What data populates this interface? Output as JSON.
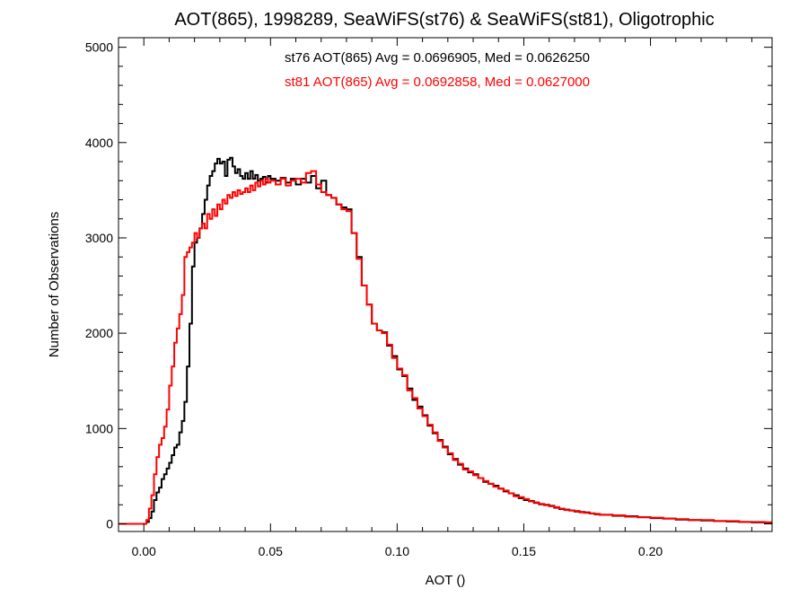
{
  "colors": {
    "st76": "#000000",
    "st81": "#ff0000",
    "axis": "#000000"
  },
  "chart_data": {
    "type": "line",
    "title": "AOT(865), 1998289, SeaWiFS(st76) & SeaWiFS(st81), Oligotrophic",
    "xlabel": "AOT ()",
    "ylabel": "Number of Observations",
    "xlim": [
      -0.01,
      0.248
    ],
    "ylim": [
      -80,
      5100
    ],
    "x_ticks": [
      0.0,
      0.05,
      0.1,
      0.15,
      0.2
    ],
    "x_tick_labels": [
      "0.00",
      "0.05",
      "0.10",
      "0.15",
      "0.20"
    ],
    "y_ticks": [
      0,
      1000,
      2000,
      3000,
      4000,
      5000
    ],
    "y_tick_labels": [
      "0",
      "1000",
      "2000",
      "3000",
      "4000",
      "5000"
    ],
    "annotations": [
      {
        "text": "st76 AOT(865) Avg = 0.0696905, Med = 0.0626250",
        "series": "st76"
      },
      {
        "text": "st81 AOT(865) Avg = 0.0692858, Med = 0.0627000",
        "series": "st81"
      }
    ],
    "series": [
      {
        "name": "st76",
        "points": [
          [
            -0.01,
            0
          ],
          [
            -0.005,
            0
          ],
          [
            -0.002,
            0
          ],
          [
            0.0,
            0
          ],
          [
            0.001,
            20
          ],
          [
            0.002,
            60
          ],
          [
            0.003,
            130
          ],
          [
            0.004,
            250
          ],
          [
            0.005,
            330
          ],
          [
            0.006,
            380
          ],
          [
            0.007,
            470
          ],
          [
            0.008,
            520
          ],
          [
            0.009,
            580
          ],
          [
            0.01,
            640
          ],
          [
            0.011,
            720
          ],
          [
            0.012,
            800
          ],
          [
            0.013,
            830
          ],
          [
            0.014,
            960
          ],
          [
            0.015,
            1080
          ],
          [
            0.016,
            1280
          ],
          [
            0.017,
            1650
          ],
          [
            0.018,
            2100
          ],
          [
            0.019,
            2700
          ],
          [
            0.02,
            2950
          ],
          [
            0.021,
            3000
          ],
          [
            0.022,
            3100
          ],
          [
            0.023,
            3250
          ],
          [
            0.024,
            3400
          ],
          [
            0.025,
            3550
          ],
          [
            0.026,
            3650
          ],
          [
            0.027,
            3700
          ],
          [
            0.028,
            3780
          ],
          [
            0.029,
            3830
          ],
          [
            0.03,
            3780
          ],
          [
            0.031,
            3800
          ],
          [
            0.032,
            3650
          ],
          [
            0.033,
            3820
          ],
          [
            0.034,
            3840
          ],
          [
            0.035,
            3750
          ],
          [
            0.036,
            3680
          ],
          [
            0.037,
            3720
          ],
          [
            0.038,
            3650
          ],
          [
            0.039,
            3620
          ],
          [
            0.04,
            3680
          ],
          [
            0.041,
            3620
          ],
          [
            0.042,
            3700
          ],
          [
            0.043,
            3620
          ],
          [
            0.044,
            3660
          ],
          [
            0.045,
            3600
          ],
          [
            0.046,
            3620
          ],
          [
            0.047,
            3640
          ],
          [
            0.048,
            3580
          ],
          [
            0.049,
            3650
          ],
          [
            0.05,
            3620
          ],
          [
            0.052,
            3600
          ],
          [
            0.054,
            3630
          ],
          [
            0.056,
            3580
          ],
          [
            0.058,
            3620
          ],
          [
            0.06,
            3560
          ],
          [
            0.062,
            3620
          ],
          [
            0.064,
            3580
          ],
          [
            0.066,
            3650
          ],
          [
            0.068,
            3520
          ],
          [
            0.07,
            3600
          ],
          [
            0.072,
            3450
          ],
          [
            0.074,
            3420
          ],
          [
            0.076,
            3350
          ],
          [
            0.078,
            3320
          ],
          [
            0.08,
            3300
          ],
          [
            0.082,
            3050
          ],
          [
            0.084,
            2800
          ],
          [
            0.086,
            2500
          ],
          [
            0.088,
            2300
          ],
          [
            0.09,
            2100
          ],
          [
            0.092,
            2030
          ],
          [
            0.094,
            2010
          ],
          [
            0.096,
            1870
          ],
          [
            0.098,
            1760
          ],
          [
            0.1,
            1620
          ],
          [
            0.102,
            1550
          ],
          [
            0.104,
            1420
          ],
          [
            0.106,
            1300
          ],
          [
            0.108,
            1230
          ],
          [
            0.11,
            1140
          ],
          [
            0.112,
            1030
          ],
          [
            0.114,
            950
          ],
          [
            0.116,
            880
          ],
          [
            0.118,
            810
          ],
          [
            0.12,
            730
          ],
          [
            0.122,
            680
          ],
          [
            0.124,
            620
          ],
          [
            0.126,
            580
          ],
          [
            0.128,
            540
          ],
          [
            0.13,
            520
          ],
          [
            0.132,
            480
          ],
          [
            0.134,
            440
          ],
          [
            0.136,
            420
          ],
          [
            0.138,
            400
          ],
          [
            0.14,
            370
          ],
          [
            0.142,
            340
          ],
          [
            0.144,
            320
          ],
          [
            0.146,
            300
          ],
          [
            0.148,
            270
          ],
          [
            0.15,
            250
          ],
          [
            0.152,
            240
          ],
          [
            0.154,
            220
          ],
          [
            0.156,
            205
          ],
          [
            0.158,
            200
          ],
          [
            0.16,
            190
          ],
          [
            0.162,
            170
          ],
          [
            0.164,
            155
          ],
          [
            0.166,
            150
          ],
          [
            0.168,
            140
          ],
          [
            0.17,
            130
          ],
          [
            0.172,
            125
          ],
          [
            0.174,
            120
          ],
          [
            0.176,
            110
          ],
          [
            0.178,
            100
          ],
          [
            0.18,
            95
          ],
          [
            0.185,
            85
          ],
          [
            0.19,
            80
          ],
          [
            0.195,
            70
          ],
          [
            0.2,
            60
          ],
          [
            0.205,
            55
          ],
          [
            0.21,
            45
          ],
          [
            0.215,
            40
          ],
          [
            0.22,
            35
          ],
          [
            0.225,
            30
          ],
          [
            0.23,
            25
          ],
          [
            0.235,
            20
          ],
          [
            0.24,
            15
          ],
          [
            0.245,
            15
          ]
        ]
      },
      {
        "name": "st81",
        "points": [
          [
            -0.01,
            0
          ],
          [
            -0.005,
            0
          ],
          [
            -0.002,
            0
          ],
          [
            0.0,
            0
          ],
          [
            0.001,
            40
          ],
          [
            0.002,
            160
          ],
          [
            0.003,
            300
          ],
          [
            0.004,
            520
          ],
          [
            0.005,
            700
          ],
          [
            0.006,
            830
          ],
          [
            0.007,
            900
          ],
          [
            0.008,
            1020
          ],
          [
            0.009,
            1200
          ],
          [
            0.01,
            1450
          ],
          [
            0.011,
            1650
          ],
          [
            0.012,
            1900
          ],
          [
            0.013,
            2050
          ],
          [
            0.014,
            2200
          ],
          [
            0.015,
            2400
          ],
          [
            0.016,
            2800
          ],
          [
            0.017,
            2850
          ],
          [
            0.018,
            2900
          ],
          [
            0.019,
            2950
          ],
          [
            0.02,
            3050
          ],
          [
            0.021,
            3000
          ],
          [
            0.022,
            3100
          ],
          [
            0.023,
            3150
          ],
          [
            0.024,
            3100
          ],
          [
            0.025,
            3250
          ],
          [
            0.026,
            3200
          ],
          [
            0.027,
            3300
          ],
          [
            0.028,
            3230
          ],
          [
            0.029,
            3350
          ],
          [
            0.03,
            3300
          ],
          [
            0.031,
            3400
          ],
          [
            0.032,
            3360
          ],
          [
            0.033,
            3450
          ],
          [
            0.034,
            3420
          ],
          [
            0.035,
            3480
          ],
          [
            0.036,
            3440
          ],
          [
            0.037,
            3500
          ],
          [
            0.038,
            3460
          ],
          [
            0.039,
            3480
          ],
          [
            0.04,
            3520
          ],
          [
            0.041,
            3480
          ],
          [
            0.042,
            3550
          ],
          [
            0.043,
            3500
          ],
          [
            0.044,
            3580
          ],
          [
            0.045,
            3540
          ],
          [
            0.046,
            3600
          ],
          [
            0.047,
            3560
          ],
          [
            0.048,
            3620
          ],
          [
            0.049,
            3580
          ],
          [
            0.05,
            3600
          ],
          [
            0.052,
            3560
          ],
          [
            0.054,
            3620
          ],
          [
            0.056,
            3550
          ],
          [
            0.058,
            3600
          ],
          [
            0.06,
            3620
          ],
          [
            0.062,
            3580
          ],
          [
            0.064,
            3680
          ],
          [
            0.066,
            3700
          ],
          [
            0.068,
            3560
          ],
          [
            0.07,
            3480
          ],
          [
            0.072,
            3450
          ],
          [
            0.074,
            3420
          ],
          [
            0.076,
            3350
          ],
          [
            0.078,
            3300
          ],
          [
            0.08,
            3280
          ],
          [
            0.082,
            3050
          ],
          [
            0.084,
            2780
          ],
          [
            0.086,
            2500
          ],
          [
            0.088,
            2300
          ],
          [
            0.09,
            2100
          ],
          [
            0.092,
            2030
          ],
          [
            0.094,
            2000
          ],
          [
            0.096,
            1880
          ],
          [
            0.098,
            1740
          ],
          [
            0.1,
            1630
          ],
          [
            0.102,
            1560
          ],
          [
            0.104,
            1400
          ],
          [
            0.106,
            1320
          ],
          [
            0.108,
            1210
          ],
          [
            0.11,
            1130
          ],
          [
            0.112,
            1040
          ],
          [
            0.114,
            960
          ],
          [
            0.116,
            870
          ],
          [
            0.118,
            800
          ],
          [
            0.12,
            740
          ],
          [
            0.122,
            670
          ],
          [
            0.124,
            630
          ],
          [
            0.126,
            570
          ],
          [
            0.128,
            550
          ],
          [
            0.13,
            510
          ],
          [
            0.132,
            480
          ],
          [
            0.134,
            450
          ],
          [
            0.136,
            420
          ],
          [
            0.138,
            390
          ],
          [
            0.14,
            370
          ],
          [
            0.142,
            350
          ],
          [
            0.144,
            320
          ],
          [
            0.146,
            290
          ],
          [
            0.148,
            280
          ],
          [
            0.15,
            260
          ],
          [
            0.152,
            235
          ],
          [
            0.154,
            225
          ],
          [
            0.156,
            210
          ],
          [
            0.158,
            195
          ],
          [
            0.16,
            185
          ],
          [
            0.162,
            175
          ],
          [
            0.164,
            160
          ],
          [
            0.166,
            145
          ],
          [
            0.168,
            140
          ],
          [
            0.17,
            135
          ],
          [
            0.172,
            120
          ],
          [
            0.174,
            115
          ],
          [
            0.176,
            110
          ],
          [
            0.178,
            105
          ],
          [
            0.18,
            95
          ],
          [
            0.185,
            90
          ],
          [
            0.19,
            75
          ],
          [
            0.195,
            70
          ],
          [
            0.2,
            65
          ],
          [
            0.205,
            55
          ],
          [
            0.21,
            50
          ],
          [
            0.215,
            40
          ],
          [
            0.22,
            40
          ],
          [
            0.225,
            30
          ],
          [
            0.23,
            30
          ],
          [
            0.235,
            20
          ],
          [
            0.24,
            20
          ],
          [
            0.245,
            15
          ]
        ]
      }
    ]
  }
}
